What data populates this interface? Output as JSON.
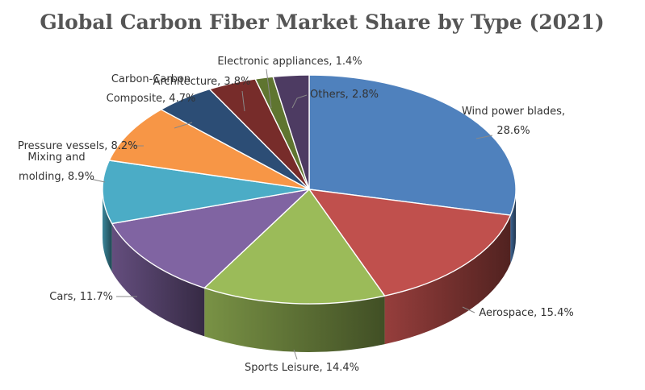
{
  "chart_data": {
    "type": "pie",
    "title": "Global Carbon Fiber Market Share by Type (2021)",
    "unit": "%",
    "slices": [
      {
        "label_lines": [
          "Wind power blades,",
          "28.6%"
        ],
        "value": 28.6,
        "color": "#4F81BD"
      },
      {
        "label_lines": [
          "Aerospace, 15.4%"
        ],
        "value": 15.4,
        "color": "#C0504D"
      },
      {
        "label_lines": [
          "Sports Leisure, 14.4%"
        ],
        "value": 14.4,
        "color": "#9BBB59"
      },
      {
        "label_lines": [
          "Cars, 11.7%"
        ],
        "value": 11.7,
        "color": "#8064A2"
      },
      {
        "label_lines": [
          "Mixing and",
          "molding, 8.9%"
        ],
        "value": 8.9,
        "color": "#4BACC6"
      },
      {
        "label_lines": [
          "Pressure vessels, 8.2%"
        ],
        "value": 8.2,
        "color": "#F79646"
      },
      {
        "label_lines": [
          "Carbon-Carbon",
          "Composite, 4.7%"
        ],
        "value": 4.7,
        "color": "#2C4D75"
      },
      {
        "label_lines": [
          "Architecture, 3.8%"
        ],
        "value": 3.8,
        "color": "#772C2A"
      },
      {
        "label_lines": [
          "Electronic appliances, 1.4%"
        ],
        "value": 1.4,
        "color": "#5F7530"
      },
      {
        "label_lines": [
          "Others, 2.8%"
        ],
        "value": 2.8,
        "color": "#4D3B62"
      }
    ]
  }
}
